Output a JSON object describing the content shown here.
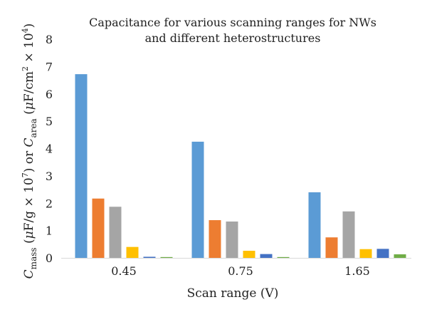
{
  "chart_data": {
    "type": "bar",
    "title": "Capacitance for various scanning ranges for NWs",
    "subtitle": "and different heterostructures",
    "xlabel": "Scan range (V)",
    "ylabel_parts": {
      "c1": "C",
      "c1_sub": "mass",
      "p1_open": " (",
      "mu1": "μ",
      "unit1": "F/g × 10",
      "exp1": "7",
      "p1_close": ") or ",
      "c2": "C",
      "c2_sub": "area",
      "p2_open": " (",
      "mu2": "μ",
      "unit2": "F/cm",
      "exp2a": "2",
      "times": " × 10",
      "exp2b": "4",
      "p2_close": ")"
    },
    "categories": [
      "0.45",
      "0.75",
      "1.65"
    ],
    "ylim": [
      0,
      8
    ],
    "yticks": [
      "0",
      "1",
      "2",
      "3",
      "4",
      "5",
      "6",
      "7",
      "8"
    ],
    "grid": false,
    "legend": "none",
    "series": [
      {
        "color": "#5b9bd5",
        "values": [
          6.72,
          4.25,
          2.4
        ]
      },
      {
        "color": "#ed7d31",
        "values": [
          2.17,
          1.38,
          0.75
        ]
      },
      {
        "color": "#a5a5a5",
        "values": [
          1.87,
          1.33,
          1.7
        ]
      },
      {
        "color": "#ffc000",
        "values": [
          0.4,
          0.26,
          0.32
        ]
      },
      {
        "color": "#4472c4",
        "values": [
          0.04,
          0.14,
          0.33
        ]
      },
      {
        "color": "#70ad47",
        "values": [
          0.03,
          0.03,
          0.13
        ]
      }
    ]
  }
}
